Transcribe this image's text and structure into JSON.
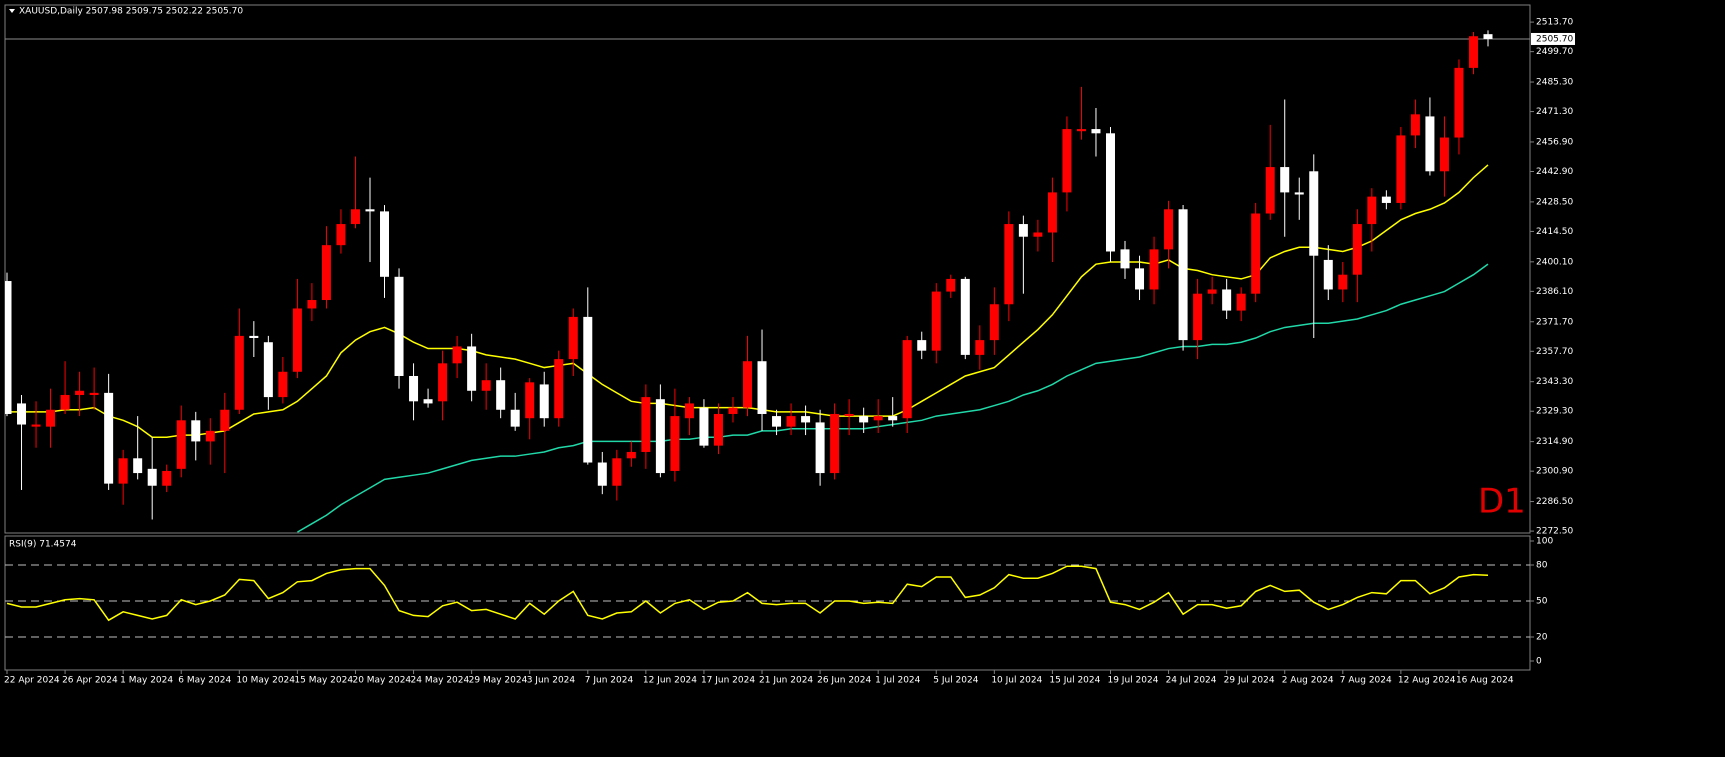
{
  "chart_data": [
    {
      "type": "candlestick",
      "title": "XAUUSD,Daily  2507.98 2509.75 2502.22 2505.70",
      "watermark": "D1",
      "categories": [
        "22 Apr 2024",
        null,
        null,
        null,
        "26 Apr 2024",
        null,
        null,
        null,
        "1 May 2024",
        null,
        null,
        null,
        "6 May 2024",
        null,
        null,
        null,
        "10 May 2024",
        null,
        null,
        null,
        "15 May 2024",
        null,
        null,
        null,
        "20 May 2024",
        null,
        null,
        null,
        "24 May 2024",
        null,
        null,
        null,
        "29 May 2024",
        null,
        null,
        null,
        "3 Jun 2024",
        null,
        null,
        null,
        "7 Jun 2024",
        null,
        null,
        null,
        "12 Jun 2024",
        null,
        null,
        null,
        "17 Jun 2024",
        null,
        null,
        null,
        "21 Jun 2024",
        null,
        null,
        null,
        "26 Jun 2024",
        null,
        null,
        null,
        "1 Jul 2024",
        null,
        null,
        null,
        "5 Jul 2024",
        null,
        null,
        null,
        "10 Jul 2024",
        null,
        null,
        null,
        "15 Jul 2024",
        null,
        null,
        null,
        "19 Jul 2024",
        null,
        null,
        null,
        "24 Jul 2024",
        null,
        null,
        null,
        "29 Jul 2024",
        null,
        null,
        null,
        "2 Aug 2024",
        null,
        null,
        null,
        "7 Aug 2024",
        null,
        null,
        null,
        "12 Aug 2024",
        null,
        null,
        null,
        "16 Aug 2024",
        null,
        null
      ],
      "open": [
        2391,
        2333,
        2322,
        2322,
        2330,
        2337,
        2337,
        2338,
        2295,
        2307,
        2302,
        2294,
        2302,
        2325,
        2315,
        2320,
        2330,
        2365,
        2362,
        2336,
        2348,
        2378,
        2382,
        2408,
        2418,
        2425,
        2424,
        2393,
        2346,
        2335,
        2334,
        2352,
        2360,
        2339,
        2344,
        2330,
        2326,
        2342,
        2326,
        2354,
        2374,
        2305,
        2294,
        2307,
        2310,
        2335,
        2301,
        2326,
        2331,
        2313,
        2328,
        2331,
        2353,
        2327,
        2322,
        2327,
        2324,
        2300,
        2327,
        2327,
        2325,
        2327,
        2326,
        2363,
        2358,
        2386,
        2392,
        2356,
        2363,
        2380,
        2418,
        2412,
        2414,
        2433,
        2462,
        2463,
        2461,
        2406,
        2397,
        2387,
        2406,
        2425,
        2363,
        2385,
        2387,
        2377,
        2385,
        2423,
        2445,
        2433,
        2443,
        2401,
        2387,
        2394,
        2418,
        2431,
        2428,
        2460,
        2469,
        2443,
        2459,
        2492,
        2507.98
      ],
      "high": [
        2395,
        2337,
        2334,
        2340,
        2353,
        2348,
        2350,
        2347,
        2311,
        2327,
        2317,
        2304,
        2332,
        2329,
        2326,
        2338,
        2378,
        2372,
        2365,
        2355,
        2392,
        2390,
        2417,
        2425,
        2450,
        2440,
        2427,
        2397,
        2352,
        2340,
        2358,
        2365,
        2366,
        2352,
        2350,
        2338,
        2345,
        2348,
        2358,
        2378,
        2388,
        2310,
        2311,
        2315,
        2342,
        2342,
        2340,
        2336,
        2335,
        2333,
        2336,
        2365,
        2368,
        2330,
        2333,
        2332,
        2330,
        2333,
        2335,
        2331,
        2335,
        2336,
        2365,
        2367,
        2390,
        2394,
        2393,
        2370,
        2388,
        2424,
        2422,
        2420,
        2440,
        2469,
        2483,
        2473,
        2464,
        2410,
        2403,
        2412,
        2429,
        2427,
        2392,
        2393,
        2392,
        2388,
        2428,
        2465,
        2477,
        2440,
        2451,
        2408,
        2400,
        2425,
        2435,
        2434,
        2464,
        2477,
        2478,
        2469,
        2496,
        2509,
        2509.75
      ],
      "low": [
        2327,
        2292,
        2312,
        2312,
        2328,
        2327,
        2330,
        2292,
        2285,
        2297,
        2278,
        2291,
        2298,
        2306,
        2304,
        2300,
        2328,
        2355,
        2330,
        2333,
        2345,
        2372,
        2378,
        2404,
        2416,
        2400,
        2383,
        2340,
        2325,
        2331,
        2325,
        2345,
        2334,
        2330,
        2326,
        2320,
        2316,
        2322,
        2322,
        2346,
        2304,
        2290,
        2287,
        2303,
        2302,
        2298,
        2296,
        2318,
        2312,
        2309,
        2324,
        2327,
        2320,
        2318,
        2318,
        2318,
        2294,
        2297,
        2318,
        2319,
        2319,
        2322,
        2319,
        2354,
        2352,
        2383,
        2354,
        2349,
        2356,
        2372,
        2385,
        2405,
        2400,
        2424,
        2458,
        2450,
        2400,
        2392,
        2382,
        2380,
        2397,
        2358,
        2354,
        2380,
        2373,
        2372,
        2381,
        2420,
        2412,
        2420,
        2364,
        2382,
        2381,
        2381,
        2405,
        2425,
        2425,
        2454,
        2441,
        2431,
        2451,
        2489,
        2502.22
      ],
      "close": [
        2328,
        2323,
        2323,
        2330,
        2337,
        2339,
        2338,
        2295,
        2307,
        2300,
        2294,
        2301,
        2325,
        2315,
        2320,
        2330,
        2365,
        2364,
        2336,
        2348,
        2378,
        2382,
        2408,
        2418,
        2425,
        2424,
        2393,
        2346,
        2334,
        2333,
        2352,
        2360,
        2339,
        2344,
        2330,
        2322,
        2343,
        2326,
        2354,
        2374,
        2305,
        2294,
        2307,
        2310,
        2336,
        2300,
        2327,
        2333,
        2313,
        2328,
        2331,
        2353,
        2328,
        2322,
        2327,
        2324,
        2300,
        2328,
        2328,
        2324,
        2327,
        2325,
        2363,
        2358,
        2386,
        2392,
        2356,
        2363,
        2380,
        2418,
        2412,
        2414,
        2433,
        2463,
        2463,
        2461,
        2405,
        2397,
        2387,
        2406,
        2425,
        2363,
        2385,
        2387,
        2377,
        2385,
        2423,
        2445,
        2433,
        2432,
        2403,
        2387,
        2394,
        2418,
        2431,
        2428,
        2460,
        2470,
        2443,
        2459,
        2492,
        2507,
        2505.7
      ],
      "up_color": "#ff0000",
      "down_color": "#ffffff",
      "series": [
        {
          "color": "#ffff00",
          "values": [
            2329,
            2329,
            2329,
            2329,
            2330,
            2330,
            2331,
            2327,
            2325,
            2322,
            2317,
            2317,
            2318,
            2318,
            2319,
            2320,
            2324,
            2328,
            2329,
            2330,
            2334,
            2340,
            2346,
            2357,
            2363,
            2367,
            2369,
            2366,
            2362,
            2359,
            2359,
            2359,
            2358,
            2356,
            2355,
            2354,
            2352,
            2350,
            2351,
            2352,
            2347,
            2342,
            2338,
            2334,
            2333,
            2333,
            2332,
            2331,
            2331,
            2331,
            2331,
            2331,
            2330,
            2329,
            2329,
            2329,
            2328,
            2327,
            2327,
            2327,
            2327,
            2327,
            2330,
            2334,
            2338,
            2342,
            2346,
            2348,
            2350,
            2356,
            2362,
            2368,
            2375,
            2384,
            2393,
            2399,
            2400,
            2400,
            2400,
            2399,
            2401,
            2397,
            2396,
            2394,
            2393,
            2392,
            2394,
            2402,
            2405,
            2407,
            2407,
            2406,
            2405,
            2407,
            2410,
            2415,
            2420,
            2423,
            2425,
            2428,
            2433,
            2440,
            2446
          ]
        },
        {
          "color": "#20d8a8",
          "values": [
            null,
            null,
            null,
            null,
            null,
            null,
            null,
            null,
            null,
            null,
            null,
            null,
            null,
            null,
            null,
            null,
            null,
            null,
            null,
            null,
            2272,
            2276,
            2280,
            2285,
            2289,
            2293,
            2297,
            2298,
            2299,
            2300,
            2302,
            2304,
            2306,
            2307,
            2308,
            2308,
            2309,
            2310,
            2312,
            2313,
            2315,
            2315,
            2315,
            2315,
            2315,
            2315,
            2316,
            2316,
            2317,
            2317,
            2318,
            2318,
            2320,
            2320,
            2321,
            2321,
            2321,
            2321,
            2321,
            2321,
            2322,
            2323,
            2324,
            2325,
            2327,
            2328,
            2329,
            2330,
            2332,
            2334,
            2337,
            2339,
            2342,
            2346,
            2349,
            2352,
            2353,
            2354,
            2355,
            2357,
            2359,
            2360,
            2360,
            2361,
            2361,
            2362,
            2364,
            2367,
            2369,
            2370,
            2371,
            2371,
            2372,
            2373,
            2375,
            2377,
            2380,
            2382,
            2384,
            2386,
            2390,
            2394,
            2399
          ]
        }
      ],
      "ylim": [
        2271.6,
        2521.8
      ],
      "yticks": [
        {
          "value": 2513.7,
          "label": "2513.70"
        },
        {
          "value": 2499.7,
          "label": "2499.70"
        },
        {
          "value": 2485.3,
          "label": "2485.30"
        },
        {
          "value": 2471.3,
          "label": "2471.30"
        },
        {
          "value": 2456.9,
          "label": "2456.90"
        },
        {
          "value": 2442.9,
          "label": "2442.90"
        },
        {
          "value": 2428.5,
          "label": "2428.50"
        },
        {
          "value": 2414.5,
          "label": "2414.50"
        },
        {
          "value": 2400.1,
          "label": "2400.10"
        },
        {
          "value": 2386.1,
          "label": "2386.10"
        },
        {
          "value": 2371.7,
          "label": "2371.70"
        },
        {
          "value": 2357.7,
          "label": "2357.70"
        },
        {
          "value": 2343.3,
          "label": "2343.30"
        },
        {
          "value": 2329.3,
          "label": "2329.30"
        },
        {
          "value": 2314.9,
          "label": "2314.90"
        },
        {
          "value": 2300.9,
          "label": "2300.90"
        },
        {
          "value": 2286.5,
          "label": "2286.50"
        },
        {
          "value": 2272.5,
          "label": "2272.50"
        }
      ],
      "last_price": {
        "value": 2505.7,
        "label": "2505.70"
      }
    },
    {
      "type": "line",
      "title": "RSI(9) 71.4574",
      "color": "#ffff00",
      "values": [
        48,
        45,
        45,
        48,
        51,
        52,
        51,
        34,
        41,
        38,
        35,
        38,
        51,
        47,
        50,
        55,
        68,
        67,
        52,
        57,
        66,
        67,
        73,
        76,
        77,
        77,
        63,
        42,
        38,
        37,
        46,
        49,
        42,
        43,
        39,
        35,
        48,
        39,
        50,
        58,
        38,
        35,
        40,
        41,
        50,
        40,
        48,
        51,
        43,
        49,
        50,
        57,
        48,
        47,
        48,
        48,
        40,
        50,
        50,
        48,
        49,
        48,
        64,
        62,
        70,
        70,
        53,
        55,
        61,
        72,
        69,
        69,
        73,
        79,
        79,
        77,
        49,
        47,
        43,
        49,
        57,
        39,
        47,
        47,
        44,
        46,
        58,
        63,
        58,
        59,
        49,
        43,
        47,
        53,
        57,
        56,
        67,
        67,
        56,
        61,
        70,
        72,
        71.4574
      ],
      "ylim": [
        0,
        100
      ],
      "yticks": [
        100,
        80,
        50,
        20,
        0
      ],
      "levels": [
        80,
        50,
        20
      ]
    }
  ]
}
